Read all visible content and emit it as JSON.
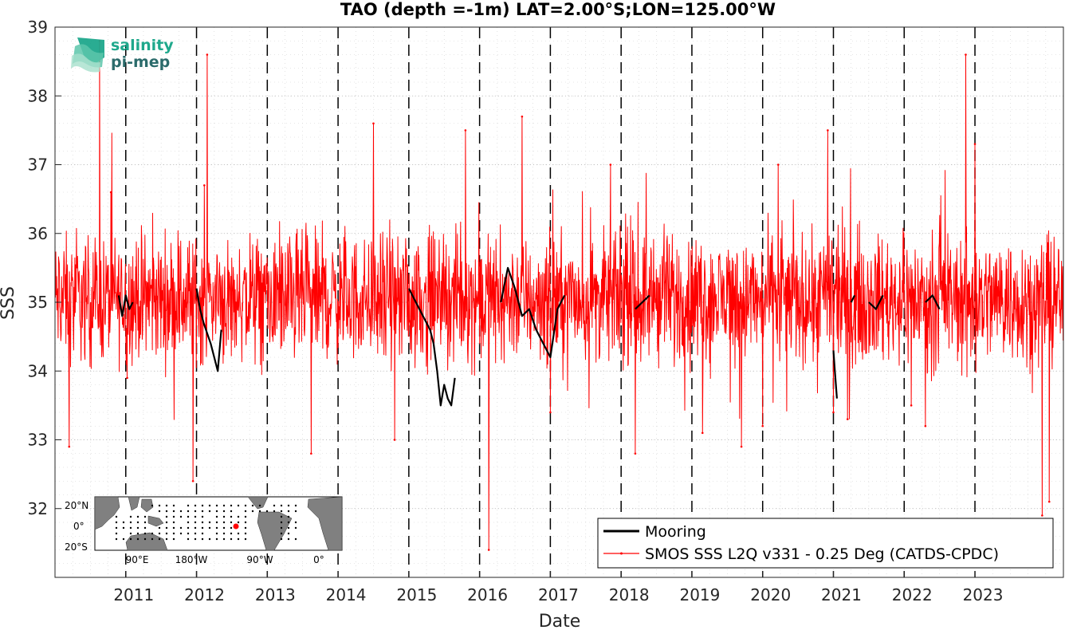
{
  "chart_data": {
    "type": "line",
    "title": "TAO (depth =-1m) LAT=2.00°S;LON=125.00°W",
    "xlabel": "Date",
    "ylabel": "SSS",
    "xlim": [
      2010.0,
      2024.25
    ],
    "ylim": [
      31.0,
      39.0
    ],
    "grid": true,
    "minor_grid": true,
    "x_ticks": [
      2011,
      2012,
      2013,
      2014,
      2015,
      2016,
      2017,
      2018,
      2019,
      2020,
      2021,
      2022,
      2023
    ],
    "x_tick_labels": [
      "2011",
      "2012",
      "2013",
      "2014",
      "2015",
      "2016",
      "2017",
      "2018",
      "2019",
      "2020",
      "2021",
      "2022",
      "2023"
    ],
    "y_ticks": [
      32,
      33,
      34,
      35,
      36,
      37,
      38,
      39
    ],
    "y_tick_labels": [
      "32",
      "33",
      "34",
      "35",
      "36",
      "37",
      "38",
      "39"
    ],
    "year_boundaries": [
      2011,
      2012,
      2013,
      2014,
      2015,
      2016,
      2017,
      2018,
      2019,
      2020,
      2021,
      2022,
      2023
    ],
    "legend_position": "bottom-right",
    "series": [
      {
        "name": "Mooring",
        "color": "#000000",
        "segments": [
          [
            [
              2010.9,
              35.1
            ],
            [
              2010.95,
              34.8
            ],
            [
              2011.0,
              35.1
            ],
            [
              2011.05,
              34.9
            ],
            [
              2011.1,
              35.0
            ]
          ],
          [
            [
              2012.0,
              35.2
            ],
            [
              2012.05,
              34.9
            ],
            [
              2012.1,
              34.7
            ],
            [
              2012.2,
              34.4
            ],
            [
              2012.3,
              34.0
            ],
            [
              2012.35,
              34.6
            ]
          ],
          [
            [
              2015.0,
              35.2
            ],
            [
              2015.1,
              35.0
            ],
            [
              2015.2,
              34.8
            ],
            [
              2015.3,
              34.6
            ],
            [
              2015.35,
              34.4
            ],
            [
              2015.4,
              34.0
            ],
            [
              2015.45,
              33.5
            ],
            [
              2015.5,
              33.8
            ],
            [
              2015.55,
              33.6
            ],
            [
              2015.6,
              33.5
            ],
            [
              2015.65,
              33.9
            ]
          ],
          [
            [
              2016.3,
              35.0
            ],
            [
              2016.4,
              35.5
            ],
            [
              2016.5,
              35.2
            ],
            [
              2016.6,
              34.8
            ],
            [
              2016.7,
              34.9
            ],
            [
              2016.8,
              34.6
            ],
            [
              2016.9,
              34.4
            ],
            [
              2017.0,
              34.2
            ],
            [
              2017.1,
              34.9
            ],
            [
              2017.2,
              35.1
            ]
          ],
          [
            [
              2018.2,
              34.9
            ],
            [
              2018.3,
              35.0
            ],
            [
              2018.4,
              35.1
            ]
          ],
          [
            [
              2021.0,
              34.3
            ],
            [
              2021.02,
              34.0
            ],
            [
              2021.05,
              33.6
            ]
          ],
          [
            [
              2021.25,
              35.0
            ],
            [
              2021.3,
              35.1
            ]
          ],
          [
            [
              2021.5,
              35.0
            ],
            [
              2021.6,
              34.9
            ],
            [
              2021.7,
              35.1
            ]
          ],
          [
            [
              2022.3,
              35.0
            ],
            [
              2022.4,
              35.1
            ],
            [
              2022.5,
              34.9
            ]
          ]
        ]
      },
      {
        "name": "SMOS SSS L2Q v331 - 0.25 Deg (CATDS-CPDC)",
        "color": "#ff0000",
        "start": 2010.0,
        "step": 0.0055,
        "mean": 35.05,
        "noise_amp": 0.55,
        "count": 2592,
        "spikes": [
          [
            2010.63,
            38.8
          ],
          [
            2010.2,
            32.9
          ],
          [
            2010.79,
            36.6
          ],
          [
            2011.02,
            33.9
          ],
          [
            2011.95,
            32.4
          ],
          [
            2012.15,
            38.6
          ],
          [
            2012.11,
            36.7
          ],
          [
            2013.62,
            32.8
          ],
          [
            2014.5,
            37.6
          ],
          [
            2014.8,
            33.0
          ],
          [
            2015.8,
            37.5
          ],
          [
            2016.13,
            31.4
          ],
          [
            2016.6,
            37.7
          ],
          [
            2017.0,
            33.4
          ],
          [
            2017.85,
            37.0
          ],
          [
            2018.2,
            32.8
          ],
          [
            2019.15,
            33.1
          ],
          [
            2019.7,
            32.9
          ],
          [
            2020.0,
            33.2
          ],
          [
            2020.22,
            37.0
          ],
          [
            2020.92,
            37.5
          ],
          [
            2021.0,
            33.4
          ],
          [
            2021.2,
            33.3
          ],
          [
            2022.1,
            33.5
          ],
          [
            2022.3,
            33.2
          ],
          [
            2022.87,
            38.6
          ],
          [
            2023.0,
            37.3
          ],
          [
            2023.95,
            31.9
          ],
          [
            2024.05,
            32.1
          ]
        ]
      }
    ]
  },
  "inset_map": {
    "lat_labels": [
      "20°N",
      "0°",
      "20°S"
    ],
    "lon_labels": [
      "90°E",
      "180°W",
      "90°W",
      "0°"
    ],
    "land_color": "#808080",
    "ocean_color": "#ffffff",
    "marker_color": "#ff0000",
    "station_color": "#000000"
  },
  "logo": {
    "line1": "salinity",
    "line2": "pi-mep",
    "color1": "#1fa88c",
    "color2": "#2b6b6b"
  }
}
